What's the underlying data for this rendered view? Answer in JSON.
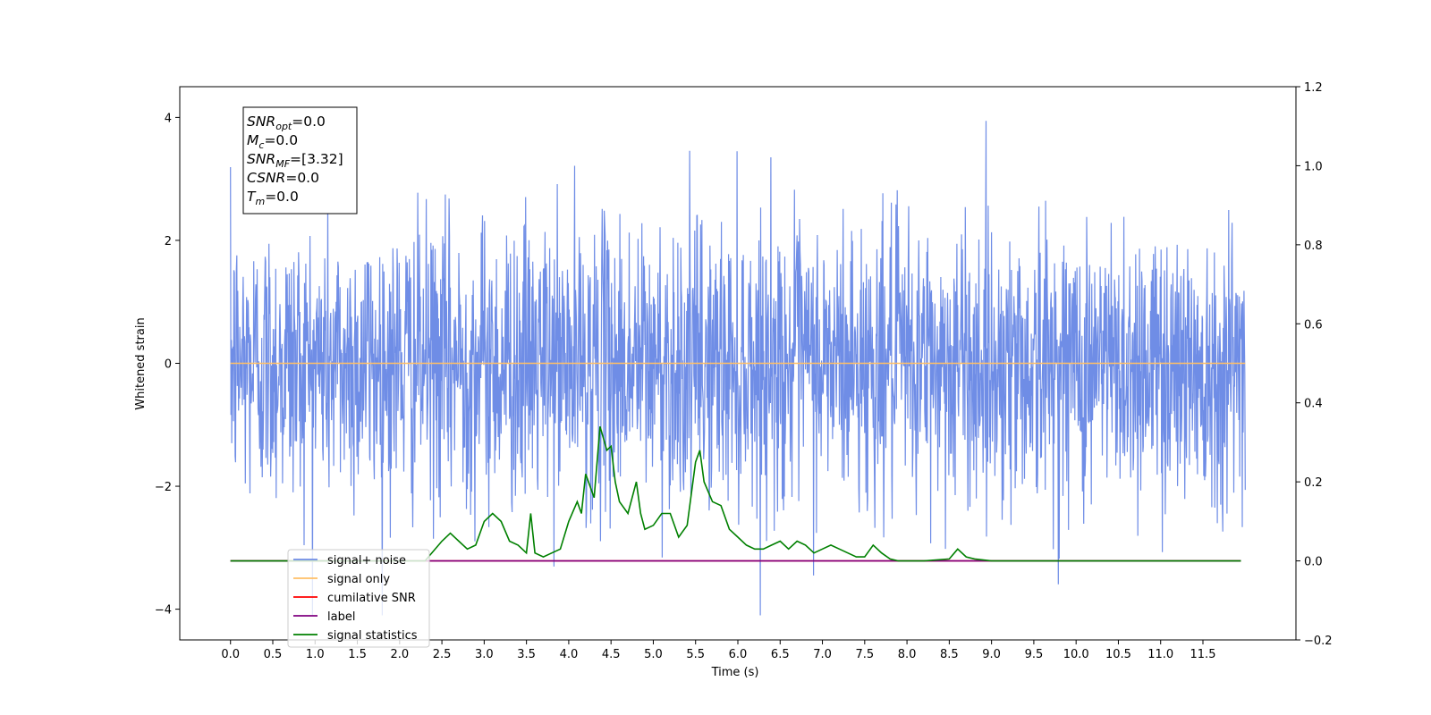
{
  "chart_data": {
    "type": "line",
    "xlabel": "Time (s)",
    "ylabel": "Whitened strain",
    "xlim": [
      -0.6,
      12.6
    ],
    "ylim": [
      -4.5,
      4.5
    ],
    "y2lim": [
      -0.2,
      1.2
    ],
    "xticks": [
      "0.0",
      "0.5",
      "1.0",
      "1.5",
      "2.0",
      "2.5",
      "3.0",
      "3.5",
      "4.0",
      "4.5",
      "5.0",
      "5.5",
      "6.0",
      "6.5",
      "7.0",
      "7.5",
      "8.0",
      "8.5",
      "9.0",
      "9.5",
      "10.0",
      "10.5",
      "11.0",
      "11.5"
    ],
    "yticks": [
      "4",
      "2",
      "0",
      "−2",
      "−4"
    ],
    "y2ticks": [
      "1.2",
      "1.0",
      "0.8",
      "0.6",
      "0.4",
      "0.2",
      "0.0",
      "−0.2"
    ],
    "grid": false,
    "legend_position": "lower-left",
    "colors": {
      "signal_noise": "#6f8de6",
      "signal_only": "#ffbf66",
      "cumulative_snr": "#ff0000",
      "label": "#800080",
      "signal_statistics": "#008000"
    },
    "series": [
      {
        "name": "signal+ noise",
        "axis": "left",
        "x_range": [
          0.0,
          12.0
        ],
        "approx_range": [
          -4.1,
          4.1
        ],
        "note_values": "white noise, sampled"
      },
      {
        "name": "signal only",
        "axis": "left",
        "x": [
          0.0,
          12.0
        ],
        "y": [
          0.0,
          0.0
        ]
      },
      {
        "name": "cumilative SNR",
        "axis": "right",
        "x": [
          0.0,
          11.95
        ],
        "y": [
          0.0,
          0.0
        ]
      },
      {
        "name": "label",
        "axis": "right",
        "x": [
          0.0,
          11.95
        ],
        "y": [
          0.0,
          0.0
        ]
      },
      {
        "name": "signal statistics",
        "axis": "right",
        "x": [
          0.0,
          2.3,
          2.5,
          2.6,
          2.7,
          2.8,
          2.9,
          3.0,
          3.1,
          3.2,
          3.3,
          3.4,
          3.5,
          3.55,
          3.6,
          3.7,
          3.8,
          3.9,
          4.0,
          4.1,
          4.15,
          4.2,
          4.3,
          4.37,
          4.45,
          4.5,
          4.55,
          4.6,
          4.7,
          4.8,
          4.85,
          4.9,
          5.0,
          5.1,
          5.2,
          5.3,
          5.4,
          5.5,
          5.55,
          5.6,
          5.7,
          5.8,
          5.9,
          6.0,
          6.1,
          6.2,
          6.3,
          6.4,
          6.5,
          6.6,
          6.7,
          6.8,
          6.9,
          7.0,
          7.1,
          7.2,
          7.3,
          7.4,
          7.5,
          7.6,
          7.7,
          7.8,
          7.9,
          8.0,
          8.2,
          8.5,
          8.6,
          8.7,
          8.8,
          9.0,
          9.5,
          10.0,
          10.5,
          11.0,
          11.95
        ],
        "y": [
          0.0,
          0.0,
          0.05,
          0.07,
          0.05,
          0.03,
          0.04,
          0.1,
          0.12,
          0.1,
          0.05,
          0.04,
          0.02,
          0.12,
          0.02,
          0.01,
          0.02,
          0.03,
          0.1,
          0.15,
          0.12,
          0.22,
          0.16,
          0.34,
          0.28,
          0.29,
          0.2,
          0.15,
          0.12,
          0.2,
          0.12,
          0.08,
          0.09,
          0.12,
          0.12,
          0.06,
          0.09,
          0.25,
          0.28,
          0.2,
          0.15,
          0.14,
          0.08,
          0.06,
          0.04,
          0.03,
          0.03,
          0.04,
          0.05,
          0.03,
          0.05,
          0.04,
          0.02,
          0.03,
          0.04,
          0.03,
          0.02,
          0.01,
          0.01,
          0.04,
          0.02,
          0.005,
          0.0,
          0.0,
          0.0,
          0.005,
          0.03,
          0.01,
          0.005,
          0.0,
          0.0,
          0.0,
          0.0,
          0.0,
          0.0
        ]
      }
    ]
  },
  "info_box": {
    "lines": [
      {
        "sym": "SNR",
        "sub": "opt",
        "val": "=0.0"
      },
      {
        "sym": "M",
        "sub": "c",
        "val": "=0.0"
      },
      {
        "sym": "SNR",
        "sub": "MF",
        "val": "=[3.32]"
      },
      {
        "sym": "CSNR",
        "sub": "",
        "val": "=0.0"
      },
      {
        "sym": "T",
        "sub": "m",
        "val": "=0.0"
      }
    ]
  },
  "legend": [
    {
      "label": "signal+ noise",
      "color": "#6f8de6"
    },
    {
      "label": "signal only",
      "color": "#ffbf66"
    },
    {
      "label": "cumilative SNR",
      "color": "#ff0000"
    },
    {
      "label": "label",
      "color": "#800080"
    },
    {
      "label": "signal statistics",
      "color": "#008000"
    }
  ]
}
